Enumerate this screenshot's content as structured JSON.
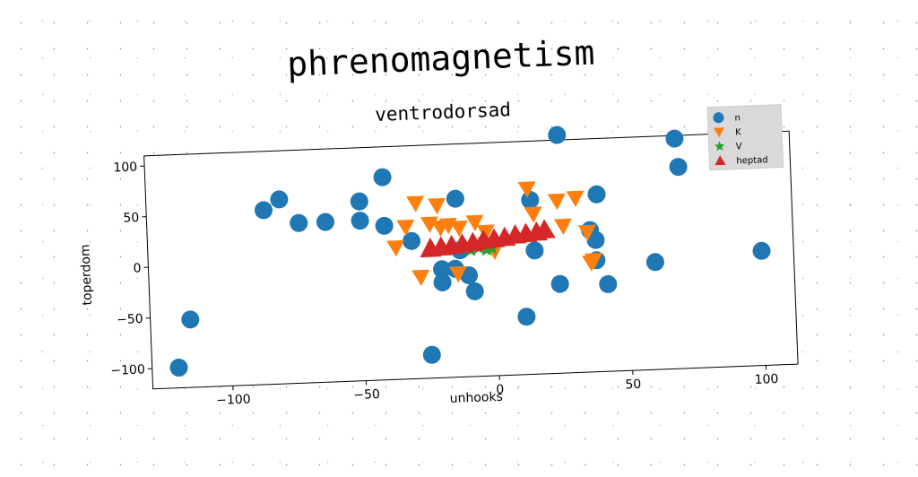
{
  "title": "phrenomagnetism",
  "colors": {
    "n": "#1f77b4",
    "k": "#ff7f0e",
    "v": "#2ca02c",
    "heptad": "#d62728"
  },
  "chart_data": {
    "type": "scatter",
    "title": "ventrodorsad",
    "xlabel": "unhooks",
    "ylabel": "toperdom",
    "xlim": [
      -130,
      112
    ],
    "ylim": [
      -120,
      110
    ],
    "xticks": [
      -100,
      -50,
      0,
      50,
      100
    ],
    "yticks": [
      -100,
      -50,
      0,
      50,
      100
    ],
    "xtick_labels": [
      "−100",
      "−50",
      "0",
      "50",
      "100"
    ],
    "ytick_labels": [
      "−100",
      "−50",
      "0",
      "50",
      "100"
    ],
    "grid": false,
    "legend_position": "top-right",
    "series": [
      {
        "name": "n",
        "marker": "circle",
        "color": "#1f77b4",
        "points": [
          [
            -120,
            -100
          ],
          [
            -115,
            -53
          ],
          [
            -86,
            52
          ],
          [
            -80,
            62
          ],
          [
            -73,
            38
          ],
          [
            -63,
            38
          ],
          [
            -50,
            57
          ],
          [
            -50,
            38
          ],
          [
            -41,
            32
          ],
          [
            -41,
            80
          ],
          [
            -31,
            16
          ],
          [
            -25,
            -97
          ],
          [
            -20,
            -13
          ],
          [
            -20,
            -26
          ],
          [
            -15,
            -13
          ],
          [
            -14,
            56
          ],
          [
            -10,
            -20
          ],
          [
            -8,
            -36
          ],
          [
            -13,
            5
          ],
          [
            11,
            -63
          ],
          [
            14,
            52
          ],
          [
            15,
            2
          ],
          [
            24,
            -32
          ],
          [
            25,
            115
          ],
          [
            36,
            20
          ],
          [
            38,
            10
          ],
          [
            38,
            -10
          ],
          [
            39,
            55
          ],
          [
            42,
            -34
          ],
          [
            60,
            -14
          ],
          [
            69,
            107
          ],
          [
            70,
            79
          ],
          [
            100,
            -7
          ]
        ]
      },
      {
        "name": "K",
        "marker": "triangle-down",
        "color": "#ff7f0e",
        "points": [
          [
            -37,
            10
          ],
          [
            -33,
            30
          ],
          [
            -29,
            53
          ],
          [
            -28,
            -20
          ],
          [
            -24,
            32
          ],
          [
            -21,
            50
          ],
          [
            -20,
            28
          ],
          [
            -17,
            30
          ],
          [
            -14,
            -18
          ],
          [
            -13,
            27
          ],
          [
            -7,
            32
          ],
          [
            -3,
            10
          ],
          [
            -3,
            22
          ],
          [
            0,
            3
          ],
          [
            13,
            63
          ],
          [
            15,
            38
          ],
          [
            24,
            50
          ],
          [
            26,
            25
          ],
          [
            31,
            52
          ],
          [
            35,
            18
          ],
          [
            36,
            -12
          ],
          [
            37,
            -10
          ]
        ]
      },
      {
        "name": "V",
        "marker": "star",
        "color": "#2ca02c",
        "points": [
          [
            -9,
            5
          ],
          [
            -6,
            7
          ],
          [
            -3,
            5
          ],
          [
            -1,
            6
          ]
        ]
      },
      {
        "name": "heptad",
        "marker": "triangle-up",
        "color": "#d62728",
        "points": [
          [
            -24,
            8
          ],
          [
            -20,
            9
          ],
          [
            -16,
            10
          ],
          [
            -12,
            11
          ],
          [
            -8,
            12
          ],
          [
            -4,
            14
          ],
          [
            0,
            15
          ],
          [
            4,
            16
          ],
          [
            8,
            18
          ],
          [
            12,
            19
          ],
          [
            16,
            20
          ],
          [
            19,
            22
          ]
        ]
      }
    ]
  }
}
